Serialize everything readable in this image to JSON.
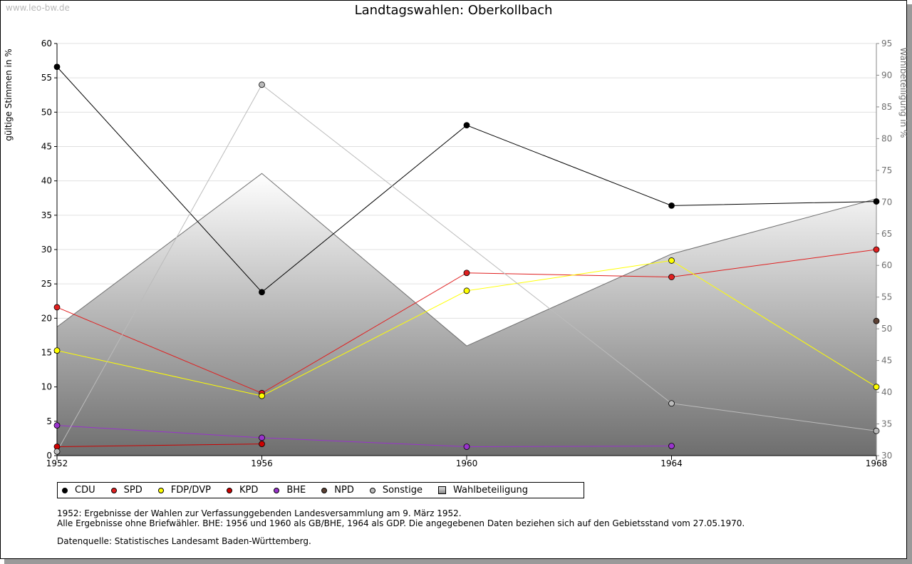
{
  "watermark": "www.leo-bw.de",
  "chart_data": {
    "type": "line",
    "title": "Landtagswahlen: Oberkollbach",
    "ylabel": "gültige Stimmen in %",
    "y2label": "Wahlbeteiligung in %",
    "ylim": [
      0,
      60
    ],
    "y2lim": [
      30,
      95
    ],
    "yticks": [
      0,
      5,
      10,
      15,
      20,
      25,
      30,
      35,
      40,
      45,
      50,
      55,
      60
    ],
    "y2ticks": [
      30,
      35,
      40,
      45,
      50,
      55,
      60,
      65,
      70,
      75,
      80,
      85,
      90,
      95
    ],
    "x": [
      "1952",
      "1956",
      "1960",
      "1964",
      "1968"
    ],
    "grid": true,
    "legend_position": "bottom",
    "series": [
      {
        "name": "CDU",
        "color": "#000000",
        "values": [
          56.6,
          23.8,
          48.1,
          36.4,
          37.0
        ]
      },
      {
        "name": "SPD",
        "color": "#e02020",
        "values": [
          21.6,
          9.1,
          26.6,
          26.0,
          30.0
        ]
      },
      {
        "name": "FDP/DVP",
        "color": "#ffff00",
        "values": [
          15.3,
          8.7,
          24.0,
          28.4,
          10.0
        ]
      },
      {
        "name": "KPD",
        "color": "#cc0000",
        "values": [
          1.3,
          1.7,
          null,
          null,
          null
        ]
      },
      {
        "name": "BHE",
        "color": "#9933cc",
        "values": [
          4.4,
          2.6,
          1.3,
          1.4,
          null
        ]
      },
      {
        "name": "NPD",
        "color": "#5c4033",
        "values": [
          null,
          null,
          null,
          null,
          19.6
        ]
      },
      {
        "name": "Sonstige",
        "color": "#bbbbbb",
        "values": [
          0.6,
          54.0,
          null,
          7.6,
          3.6
        ]
      },
      {
        "name": "Wahlbeteiligung",
        "color": "#999999",
        "axis": "right",
        "type": "area",
        "values": [
          50.3,
          74.5,
          47.3,
          61.8,
          70.5
        ]
      }
    ]
  },
  "notes": [
    "1952: Ergebnisse der Wahlen zur Verfassunggebenden Landesversammlung am 9. März 1952.",
    "Alle Ergebnisse ohne Briefwähler. BHE: 1956 und 1960 als GB/BHE, 1964 als GDP. Die angegebenen Daten beziehen sich auf den Gebietsstand vom 27.05.1970."
  ],
  "source": "Datenquelle: Statistisches Landesamt Baden-Württemberg."
}
